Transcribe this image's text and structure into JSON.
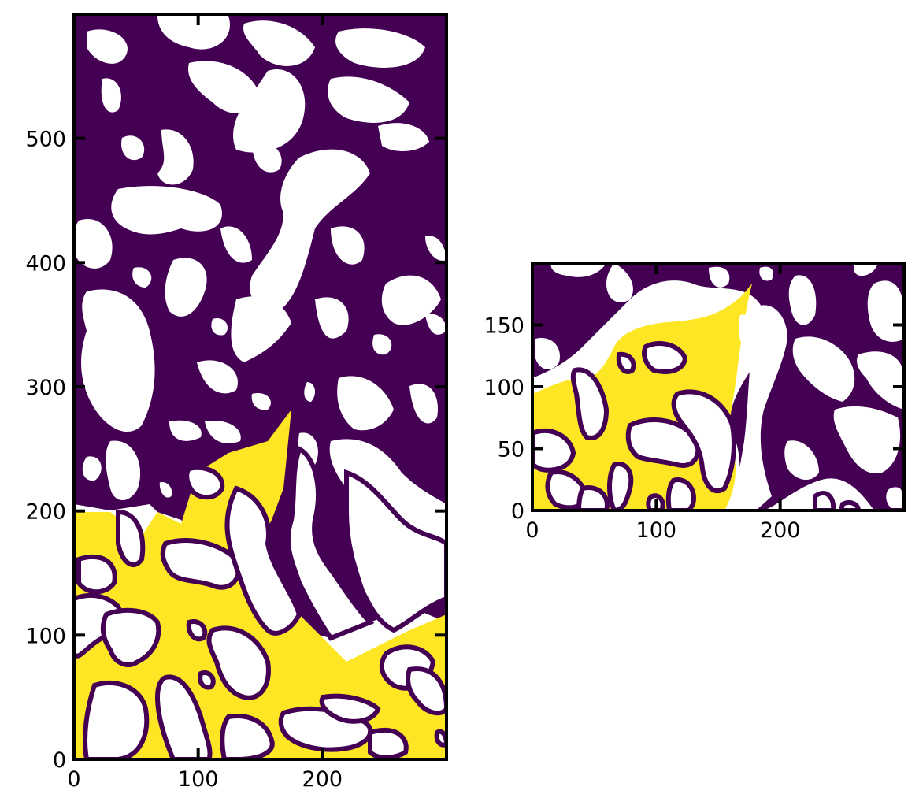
{
  "colors": {
    "pore": "#440154",
    "solid": "#ffffff",
    "fluid": "#fde725",
    "frame": "#000000"
  },
  "chart_data": [
    {
      "type": "heatmap",
      "title": "",
      "xlabel": "",
      "ylabel": "",
      "xlim": [
        0,
        300
      ],
      "ylim": [
        0,
        600
      ],
      "xticks": [
        0,
        100,
        200
      ],
      "yticks": [
        0,
        100,
        200,
        300,
        400,
        500
      ],
      "grid": false,
      "legend": "none",
      "colormap": "viridis",
      "regions": [
        {
          "name": "yellow",
          "y_range": [
            0,
            280
          ]
        },
        {
          "name": "purple",
          "y_range": [
            200,
            600
          ]
        },
        {
          "name": "white",
          "y_range": [
            0,
            600
          ]
        }
      ]
    },
    {
      "type": "heatmap",
      "title": "",
      "xlabel": "",
      "ylabel": "",
      "xlim": [
        0,
        300
      ],
      "ylim": [
        0,
        200
      ],
      "xticks": [
        0,
        100,
        200
      ],
      "yticks": [
        0,
        50,
        100,
        150
      ],
      "grid": false,
      "legend": "none",
      "colormap": "viridis",
      "regions": [
        {
          "name": "yellow",
          "y_range": [
            0,
            180
          ]
        },
        {
          "name": "purple",
          "y_range": [
            0,
            200
          ]
        },
        {
          "name": "white",
          "y_range": [
            0,
            200
          ]
        }
      ]
    }
  ]
}
